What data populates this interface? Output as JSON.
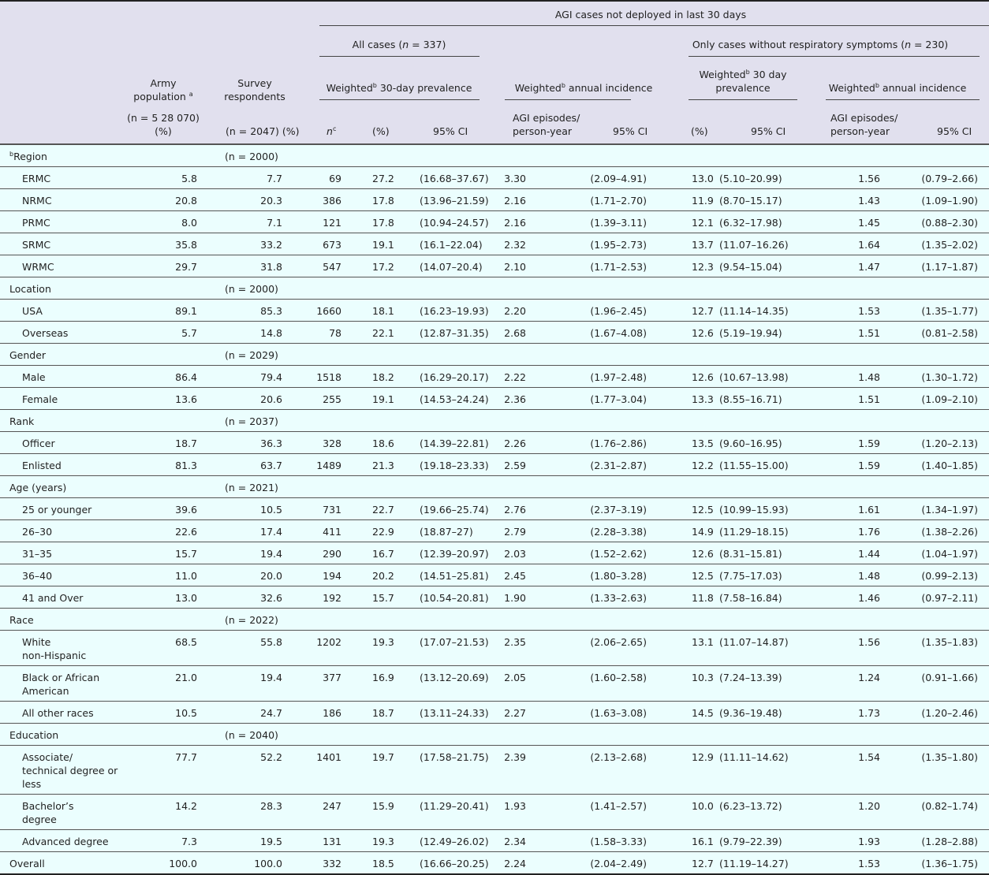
{
  "header": {
    "top_group": "AGI cases not deployed in last 30 days",
    "all_cases": {
      "label": "All cases (",
      "n_symbol": "n",
      "n_value": " = 337)"
    },
    "no_resp": {
      "label": "Only cases without respiratory symptoms (",
      "n_symbol": "n",
      "n_value": " = 230)"
    },
    "weighted": "Weighted",
    "sup_b": "b",
    "prev30": " 30-day prevalence",
    "annual": " annual incidence",
    "prev30b_line1": " 30 day",
    "prev30b_line2": "prevalence",
    "army_pop_line1": "Army",
    "army_pop_line2": "population ",
    "sup_a": "a",
    "army_n": "(n = 5 28 070)",
    "pct": "(%)",
    "survey_line1": "Survey",
    "survey_line2": "respondents",
    "survey_n": "(n = 2047)",
    "n_col": "n",
    "sup_c": "c",
    "ci": "95% CI",
    "episodes_line1": "AGI episodes/",
    "episodes_line2": "person-year"
  },
  "rows": [
    {
      "type": "group",
      "label": "Region",
      "sup": "b",
      "n": "(n = 2000)"
    },
    {
      "label": "ERMC",
      "cells": [
        "5.8",
        "7.7",
        "69",
        "27.2",
        "(16.68–37.67)",
        "3.30",
        "(2.09–4.91)",
        "13.0",
        "(5.10–20.99)",
        "1.56",
        "(0.79–2.66)"
      ]
    },
    {
      "label": "NRMC",
      "cells": [
        "20.8",
        "20.3",
        "386",
        "17.8",
        "(13.96–21.59)",
        "2.16",
        "(1.71–2.70)",
        "11.9",
        "(8.70–15.17)",
        "1.43",
        "(1.09–1.90)"
      ]
    },
    {
      "label": "PRMC",
      "cells": [
        "8.0",
        "7.1",
        "121",
        "17.8",
        "(10.94–24.57)",
        "2.16",
        "(1.39–3.11)",
        "12.1",
        "(6.32–17.98)",
        "1.45",
        "(0.88–2.30)"
      ]
    },
    {
      "label": "SRMC",
      "cells": [
        "35.8",
        "33.2",
        "673",
        "19.1",
        "(16.1–22.04)",
        "2.32",
        "(1.95–2.73)",
        "13.7",
        "(11.07–16.26)",
        "1.64",
        "(1.35–2.02)"
      ]
    },
    {
      "label": "WRMC",
      "cells": [
        "29.7",
        "31.8",
        "547",
        "17.2",
        "(14.07–20.4)",
        "2.10",
        "(1.71–2.53)",
        "12.3",
        "(9.54–15.04)",
        "1.47",
        "(1.17–1.87)"
      ]
    },
    {
      "type": "group",
      "label": "Location",
      "n": "(n = 2000)"
    },
    {
      "label": "USA",
      "cells": [
        "89.1",
        "85.3",
        "1660",
        "18.1",
        "(16.23–19.93)",
        "2.20",
        "(1.96–2.45)",
        "12.7",
        "(11.14–14.35)",
        "1.53",
        "(1.35–1.77)"
      ]
    },
    {
      "label": "Overseas",
      "cells": [
        "5.7",
        "14.8",
        "78",
        "22.1",
        "(12.87–31.35)",
        "2.68",
        "(1.67–4.08)",
        "12.6",
        "(5.19–19.94)",
        "1.51",
        "(0.81–2.58)"
      ]
    },
    {
      "type": "group",
      "label": "Gender",
      "n": "(n = 2029)"
    },
    {
      "label": "Male",
      "cells": [
        "86.4",
        "79.4",
        "1518",
        "18.2",
        "(16.29–20.17)",
        "2.22",
        "(1.97–2.48)",
        "12.6",
        "(10.67–13.98)",
        "1.48",
        "(1.30–1.72)"
      ]
    },
    {
      "label": "Female",
      "cells": [
        "13.6",
        "20.6",
        "255",
        "19.1",
        "(14.53–24.24)",
        "2.36",
        "(1.77–3.04)",
        "13.3",
        "(8.55–16.71)",
        "1.51",
        "(1.09–2.10)"
      ]
    },
    {
      "type": "group",
      "label": "Rank",
      "n": "(n = 2037)"
    },
    {
      "label": "Officer",
      "cells": [
        "18.7",
        "36.3",
        "328",
        "18.6",
        "(14.39–22.81)",
        "2.26",
        "(1.76–2.86)",
        "13.5",
        "(9.60–16.95)",
        "1.59",
        "(1.20–2.13)"
      ]
    },
    {
      "label": "Enlisted",
      "cells": [
        "81.3",
        "63.7",
        "1489",
        "21.3",
        "(19.18–23.33)",
        "2.59",
        "(2.31–2.87)",
        "12.2",
        "(11.55–15.00)",
        "1.59",
        "(1.40–1.85)"
      ]
    },
    {
      "type": "group",
      "label": "Age (years)",
      "n": "(n = 2021)"
    },
    {
      "label": "25 or younger",
      "cells": [
        "39.6",
        "10.5",
        "731",
        "22.7",
        "(19.66–25.74)",
        "2.76",
        "(2.37–3.19)",
        "12.5",
        "(10.99–15.93)",
        "1.61",
        "(1.34–1.97)"
      ]
    },
    {
      "label": "26–30",
      "cells": [
        "22.6",
        "17.4",
        "411",
        "22.9",
        "(18.87–27)",
        "2.79",
        "(2.28–3.38)",
        "14.9",
        "(11.29–18.15)",
        "1.76",
        "(1.38–2.26)"
      ]
    },
    {
      "label": "31–35",
      "cells": [
        "15.7",
        "19.4",
        "290",
        "16.7",
        "(12.39–20.97)",
        "2.03",
        "(1.52–2.62)",
        "12.6",
        "(8.31–15.81)",
        "1.44",
        "(1.04–1.97)"
      ]
    },
    {
      "label": "36–40",
      "cells": [
        "11.0",
        "20.0",
        "194",
        "20.2",
        "(14.51–25.81)",
        "2.45",
        "(1.80–3.28)",
        "12.5",
        "(7.75–17.03)",
        "1.48",
        "(0.99–2.13)"
      ]
    },
    {
      "label": "41 and Over",
      "cells": [
        "13.0",
        "32.6",
        "192",
        "15.7",
        "(10.54–20.81)",
        "1.90",
        "(1.33–2.63)",
        "11.8",
        "(7.58–16.84)",
        "1.46",
        "(0.97–2.11)"
      ]
    },
    {
      "type": "group",
      "label": "Race",
      "n": "(n = 2022)"
    },
    {
      "label": "White\nnon-Hispanic",
      "cells": [
        "68.5",
        "55.8",
        "1202",
        "19.3",
        "(17.07–21.53)",
        "2.35",
        "(2.06–2.65)",
        "13.1",
        "(11.07–14.87)",
        "1.56",
        "(1.35–1.83)"
      ]
    },
    {
      "label": "Black or African\nAmerican",
      "cells": [
        "21.0",
        "19.4",
        "377",
        "16.9",
        "(13.12–20.69)",
        "2.05",
        "(1.60–2.58)",
        "10.3",
        "(7.24–13.39)",
        "1.24",
        "(0.91–1.66)"
      ]
    },
    {
      "label": "All other races",
      "cells": [
        "10.5",
        "24.7",
        "186",
        "18.7",
        "(13.11–24.33)",
        "2.27",
        "(1.63–3.08)",
        "14.5",
        "(9.36–19.48)",
        "1.73",
        "(1.20–2.46)"
      ]
    },
    {
      "type": "group",
      "label": "Education",
      "n": "(n = 2040)"
    },
    {
      "label": "Associate/\ntechnical degree or\nless",
      "cells": [
        "77.7",
        "52.2",
        "1401",
        "19.7",
        "(17.58–21.75)",
        "2.39",
        "(2.13–2.68)",
        "12.9",
        "(11.11–14.62)",
        "1.54",
        "(1.35–1.80)"
      ]
    },
    {
      "label": "Bachelor’s\ndegree",
      "cells": [
        "14.2",
        "28.3",
        "247",
        "15.9",
        "(11.29–20.41)",
        "1.93",
        "(1.41–2.57)",
        "10.0",
        "(6.23–13.72)",
        "1.20",
        "(0.82–1.74)"
      ]
    },
    {
      "label": "Advanced degree",
      "cells": [
        "7.3",
        "19.5",
        "131",
        "19.3",
        "(12.49–26.02)",
        "2.34",
        "(1.58–3.33)",
        "16.1",
        "(9.79–22.39)",
        "1.93",
        "(1.28–2.88)"
      ]
    },
    {
      "type": "overall",
      "label": "Overall",
      "cells": [
        "100.0",
        "100.0",
        "332",
        "18.5",
        "(16.66–20.25)",
        "2.24",
        "(2.04–2.49)",
        "12.7",
        "(11.19–14.27)",
        "1.53",
        "(1.36–1.75)"
      ]
    }
  ],
  "colors": {
    "header_bg": "#e1e0ee",
    "body_bg": "#ebfefe",
    "rule": "#555555"
  }
}
